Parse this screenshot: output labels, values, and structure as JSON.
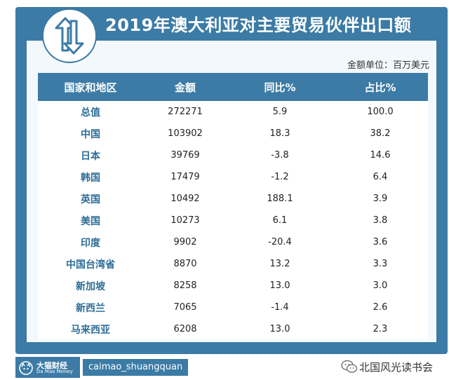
{
  "title": "2019年澳大利亚对主要贸易伙伴出口额",
  "unit_note": "金额单位：百万美元",
  "colors": {
    "accent": "#3b7ba5",
    "panel_bg": "#f3f8fc",
    "label_text": "#2f6e98"
  },
  "table": {
    "headers": [
      "国家和地区",
      "金额",
      "同比%",
      "占比%"
    ],
    "rows": [
      [
        "总值",
        "272271",
        "5.9",
        "100.0"
      ],
      [
        "中国",
        "103902",
        "18.3",
        "38.2"
      ],
      [
        "日本",
        "39769",
        "-3.8",
        "14.6"
      ],
      [
        "韩国",
        "17479",
        "-1.2",
        "6.4"
      ],
      [
        "英国",
        "10492",
        "188.1",
        "3.9"
      ],
      [
        "美国",
        "10273",
        "6.1",
        "3.8"
      ],
      [
        "印度",
        "9902",
        "-20.4",
        "3.6"
      ],
      [
        "中国台湾省",
        "8870",
        "13.2",
        "3.3"
      ],
      [
        "新加坡",
        "8258",
        "13.0",
        "3.0"
      ],
      [
        "新西兰",
        "7065",
        "-1.4",
        "2.6"
      ],
      [
        "马来西亚",
        "6208",
        "13.0",
        "2.3"
      ]
    ]
  },
  "footer": {
    "brand_name": "大猫财经",
    "brand_sub": "Da Mao Money",
    "handle": "caimao_shuangquan",
    "watermark": "北国风光读书会"
  },
  "icons": {
    "logo": "up-down-arrows-icon",
    "brand": "cat-logo-icon",
    "wechat": "wechat-icon"
  }
}
